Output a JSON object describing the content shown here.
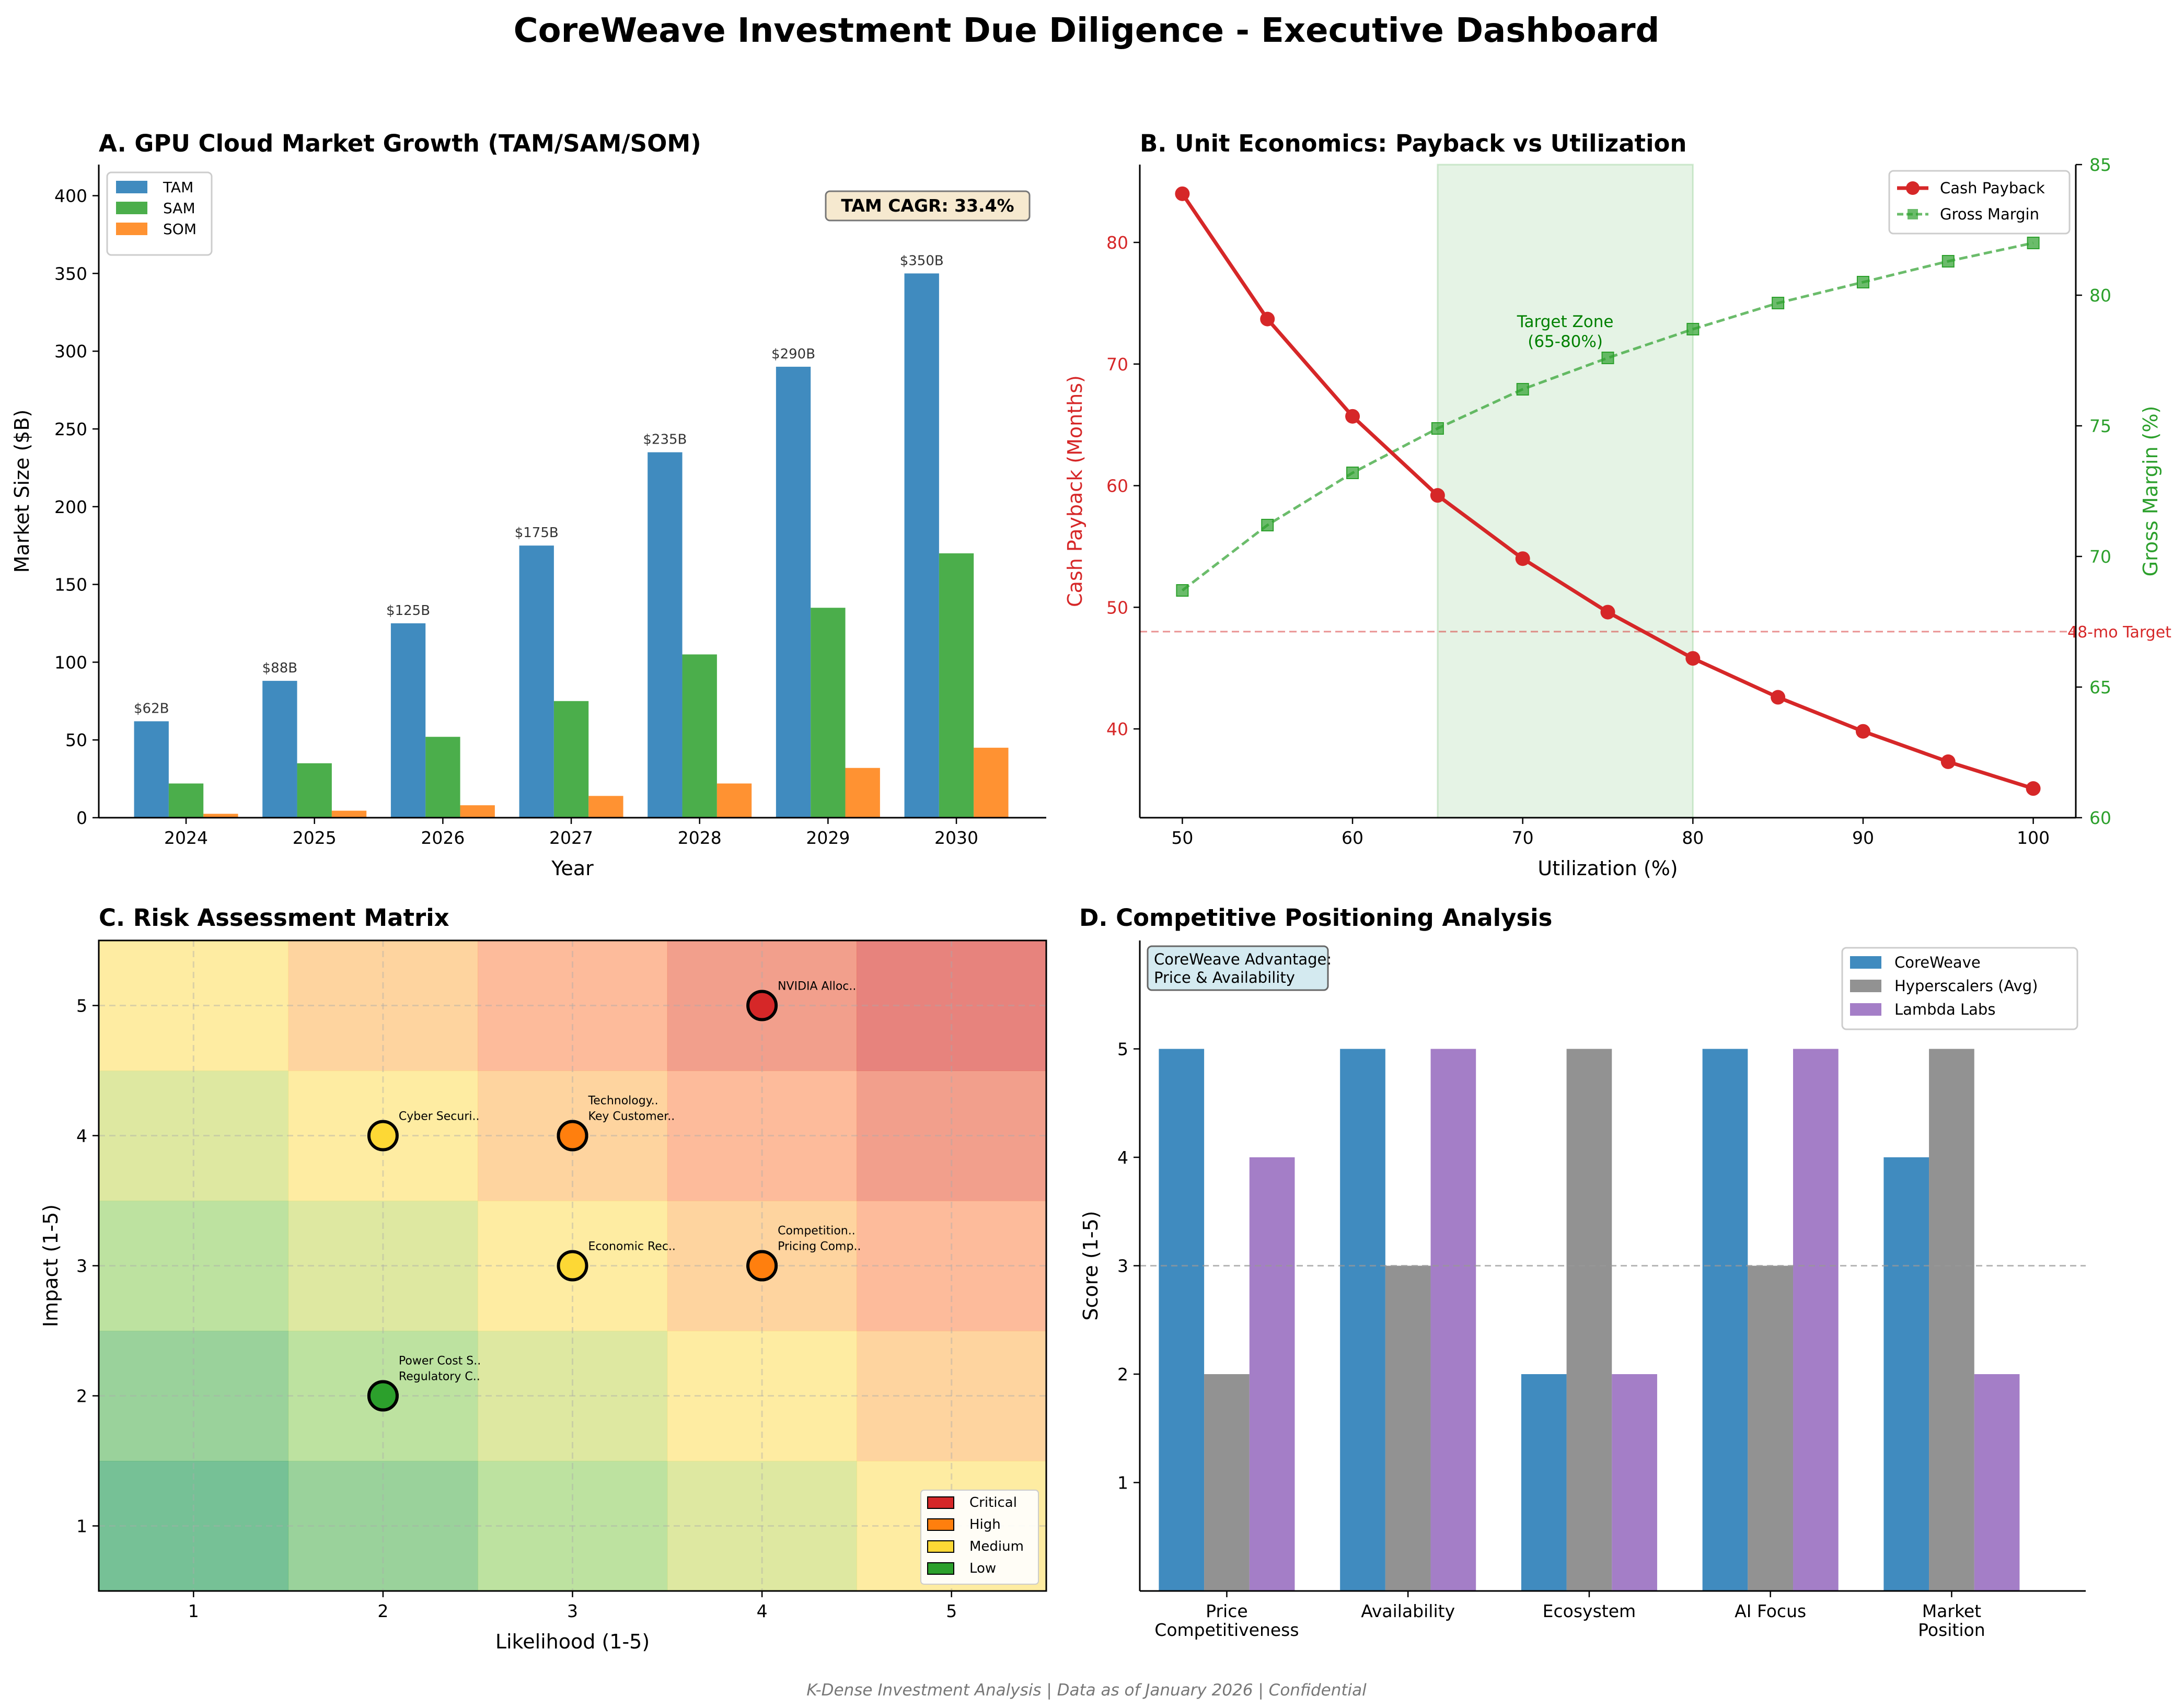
{
  "title": "CoreWeave Investment Due Diligence - Executive Dashboard",
  "footer": "K-Dense Investment Analysis | Data as of January 2026 | Confidential",
  "chart_data": [
    {
      "type": "bar",
      "title": "A. GPU Cloud Market Growth (TAM/SAM/SOM)",
      "xlabel": "Year",
      "ylabel": "Market Size ($B)",
      "ylim": [
        0,
        420
      ],
      "yticks": [
        0,
        50,
        100,
        150,
        200,
        250,
        300,
        350,
        400
      ],
      "categories": [
        "2024",
        "2025",
        "2026",
        "2027",
        "2028",
        "2029",
        "2030"
      ],
      "series": [
        {
          "name": "TAM",
          "color": "#1f77b4",
          "values": [
            62,
            88,
            125,
            175,
            235,
            290,
            350
          ]
        },
        {
          "name": "SAM",
          "color": "#2ca02c",
          "values": [
            22,
            35,
            52,
            75,
            105,
            135,
            170
          ]
        },
        {
          "name": "SOM",
          "color": "#ff7f0e",
          "values": [
            2.5,
            4.5,
            8,
            14,
            22,
            32,
            45
          ]
        }
      ],
      "data_labels": [
        "$62B",
        "$88B",
        "$125B",
        "$175B",
        "$235B",
        "$290B",
        "$350B"
      ],
      "annotation": "TAM CAGR: 33.4%",
      "legend": "top-left"
    },
    {
      "type": "line",
      "title": "B. Unit Economics: Payback vs Utilization",
      "xlabel": "Utilization (%)",
      "ylabel": "Cash Payback (Months)",
      "ylabel_right": "Gross Margin (%)",
      "xlim": [
        47.5,
        102.5
      ],
      "ylim": [
        32.7,
        86.4
      ],
      "ylim_right": [
        60,
        85
      ],
      "xticks": [
        50,
        60,
        70,
        80,
        90,
        100
      ],
      "yticks": [
        40,
        50,
        60,
        70,
        80
      ],
      "yticks_right": [
        60,
        65,
        70,
        75,
        80,
        85
      ],
      "x": [
        50,
        55,
        60,
        65,
        70,
        75,
        80,
        85,
        90,
        95,
        100
      ],
      "series": [
        {
          "name": "Cash Payback",
          "color": "#d62728",
          "axis": "left",
          "values": [
            84.0,
            73.7,
            65.7,
            59.2,
            54.0,
            49.6,
            45.8,
            42.6,
            39.8,
            37.3,
            35.1
          ]
        },
        {
          "name": "Gross Margin",
          "color": "#2ca02c",
          "axis": "right",
          "values": [
            68.7,
            71.2,
            73.2,
            74.9,
            76.4,
            77.6,
            78.7,
            79.7,
            80.5,
            81.3,
            82.0
          ]
        }
      ],
      "target_zone": {
        "from": 65,
        "to": 80,
        "label_line1": "Target Zone",
        "label_line2": "(65-80%)"
      },
      "reference_line": {
        "value": 48,
        "label": "48-mo Target"
      },
      "legend": "top-right"
    },
    {
      "type": "scatter",
      "title": "C. Risk Assessment Matrix",
      "xlabel": "Likelihood (1-5)",
      "ylabel": "Impact (1-5)",
      "xlim": [
        0.5,
        5.5
      ],
      "ylim": [
        0.5,
        5.5
      ],
      "ticks": [
        1,
        2,
        3,
        4,
        5
      ],
      "points": [
        {
          "label": "NVIDIA Alloc..",
          "likelihood": 4,
          "impact": 5,
          "level": "Critical"
        },
        {
          "label": "Cyber Securi..",
          "likelihood": 2,
          "impact": 4,
          "level": "Medium"
        },
        {
          "label": "Key Customer..",
          "likelihood": 3,
          "impact": 4,
          "level": "High"
        },
        {
          "label": "Technology..",
          "likelihood": 3,
          "impact": 4,
          "level": "High"
        },
        {
          "label": "Economic Rec..",
          "likelihood": 3,
          "impact": 3,
          "level": "Medium"
        },
        {
          "label": "Pricing Comp..",
          "likelihood": 4,
          "impact": 3,
          "level": "High"
        },
        {
          "label": "Competition..",
          "likelihood": 4,
          "impact": 3,
          "level": "High"
        },
        {
          "label": "Regulatory C..",
          "likelihood": 2,
          "impact": 2,
          "level": "Low"
        },
        {
          "label": "Power Cost S..",
          "likelihood": 2,
          "impact": 2,
          "level": "Low"
        }
      ],
      "levels": [
        {
          "name": "Critical",
          "color": "#d62728"
        },
        {
          "name": "High",
          "color": "#ff7f0e"
        },
        {
          "name": "Medium",
          "color": "#fdd835"
        },
        {
          "name": "Low",
          "color": "#2ca02c"
        }
      ],
      "legend": "bottom-right"
    },
    {
      "type": "bar",
      "title": "D. Competitive Positioning Analysis",
      "ylabel": "Score (1-5)",
      "ylim": [
        0,
        6
      ],
      "yticks": [
        1,
        2,
        3,
        4,
        5
      ],
      "categories": [
        "Price\nCompetitiveness",
        "Availability",
        "Ecosystem",
        "AI Focus",
        "Market\nPosition"
      ],
      "series": [
        {
          "name": "CoreWeave",
          "color": "#1f77b4",
          "values": [
            5,
            5,
            2,
            5,
            4
          ]
        },
        {
          "name": "Hyperscalers (Avg)",
          "color": "#7f7f7f",
          "values": [
            2,
            3,
            5,
            3,
            5
          ]
        },
        {
          "name": "Lambda Labs",
          "color": "#9467bd",
          "values": [
            4,
            5,
            2,
            5,
            2
          ]
        }
      ],
      "reference_line": 3,
      "annotation_line1": "CoreWeave Advantage:",
      "annotation_line2": "Price & Availability",
      "legend": "top-right"
    }
  ]
}
